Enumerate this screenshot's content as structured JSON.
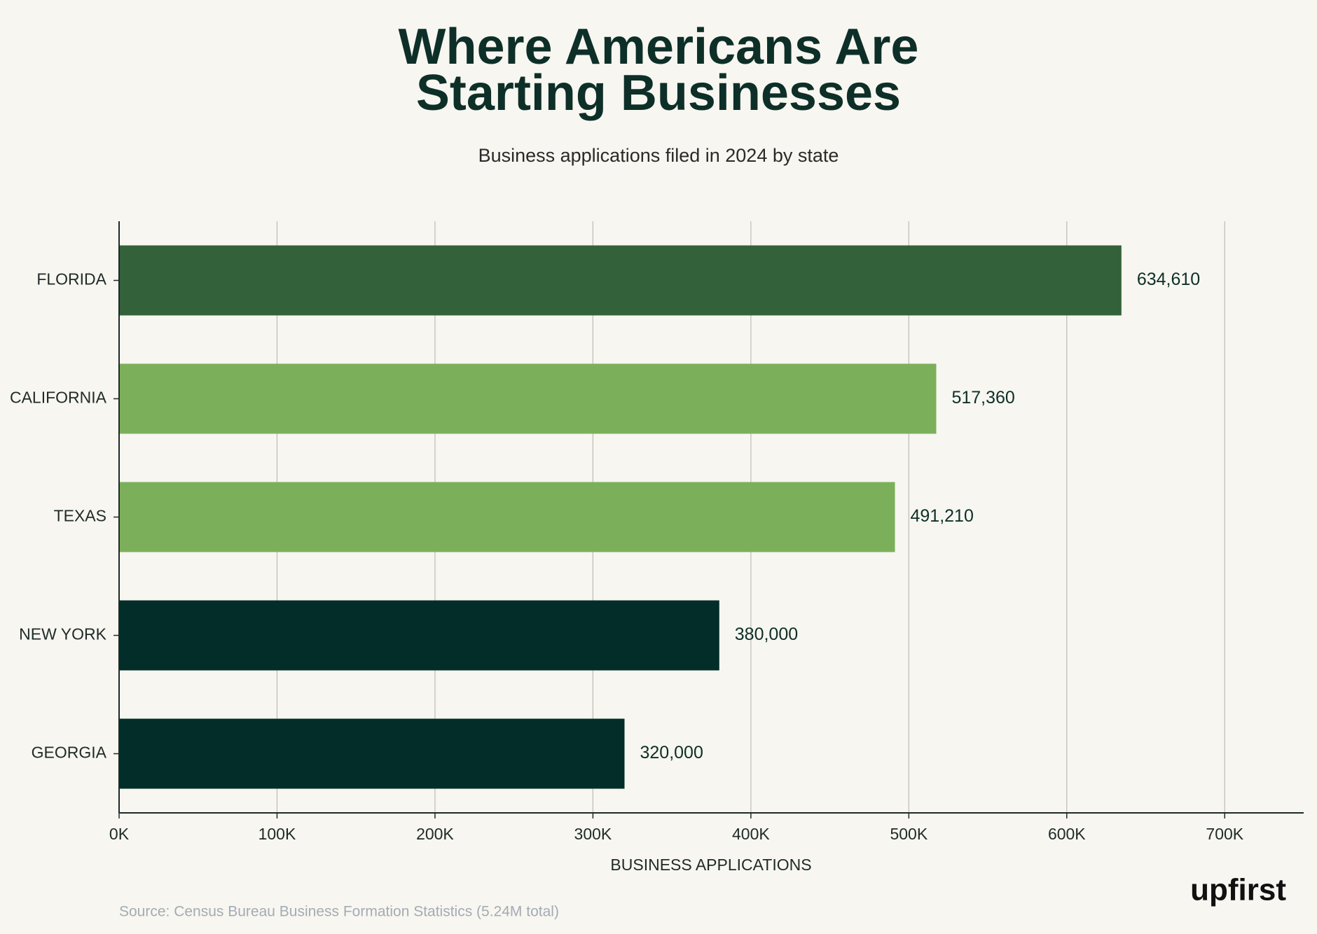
{
  "chart_data": {
    "type": "bar",
    "orientation": "horizontal",
    "title": [
      "Where Americans Are",
      "Starting Businesses"
    ],
    "subtitle": "Business applications filed in 2024 by state",
    "categories": [
      "FLORIDA",
      "CALIFORNIA",
      "TEXAS",
      "NEW YORK",
      "GEORGIA"
    ],
    "values": [
      634610,
      517360,
      491210,
      380000,
      320000
    ],
    "value_labels": [
      "634,610",
      "517,360",
      "491,210",
      "380,000",
      "320,000"
    ],
    "colors": [
      "#33613a",
      "#7caf5a",
      "#7caf5a",
      "#032d28",
      "#032d28"
    ],
    "xlim": [
      0,
      750000
    ],
    "xticks": [
      {
        "value": 0,
        "label": "0K"
      },
      {
        "value": 100000,
        "label": "100K"
      },
      {
        "value": 200000,
        "label": "200K"
      },
      {
        "value": 300000,
        "label": "300K"
      },
      {
        "value": 400000,
        "label": "400K"
      },
      {
        "value": 500000,
        "label": "500K"
      },
      {
        "value": 600000,
        "label": "600K"
      },
      {
        "value": 700000,
        "label": "700K"
      }
    ],
    "xlabel": "BUSINESS APPLICATIONS",
    "grid": true,
    "source": "Source: Census Bureau Business Formation Statistics (5.24M total)",
    "logo": "upfirst"
  }
}
